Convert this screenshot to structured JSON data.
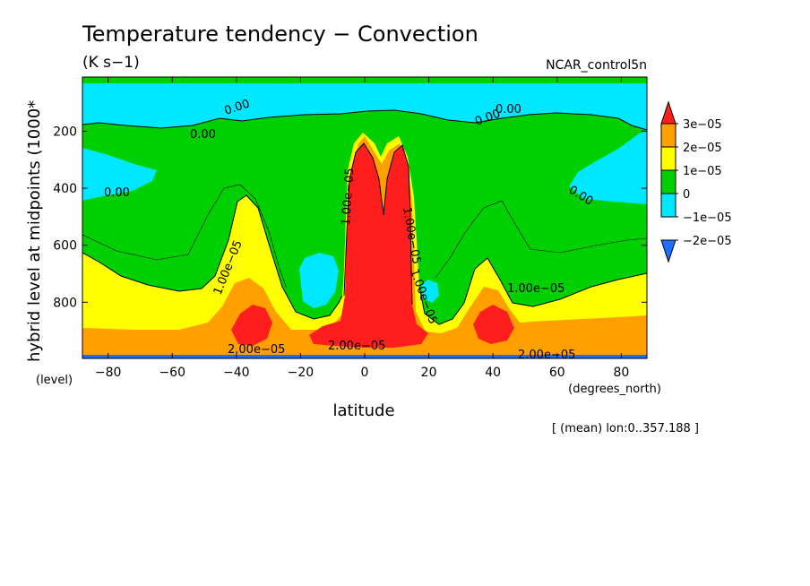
{
  "chart_data": {
    "type": "heatmap",
    "title": "Temperature tendency − Convection",
    "units": "(K s−1)",
    "run_label": "NCAR_control5n",
    "xlabel": "latitude",
    "x_unit_label": "(degrees_north)",
    "ylabel": "hybrid level at midpoints (1000*",
    "y_unit_label": "(level)",
    "footnote": "[ (mean) lon:0..357.188 ]",
    "xlim": [
      -88,
      88
    ],
    "ylim": [
      997,
      10
    ],
    "x_ticks": [
      -80,
      -60,
      -40,
      -20,
      0,
      20,
      40,
      60,
      80
    ],
    "x_tick_labels": [
      "−80",
      "−60",
      "−40",
      "−20",
      "0",
      "20",
      "40",
      "60",
      "80"
    ],
    "y_ticks": [
      200,
      400,
      600,
      800
    ],
    "y_tick_labels": [
      "200",
      "400",
      "600",
      "800"
    ],
    "legend": {
      "placement": "right",
      "colors": [
        "#1e6eff",
        "#00e8ff",
        "#00d000",
        "#ffff00",
        "#ffa000",
        "#ff1e1e"
      ],
      "labels": [
        "3e−05",
        "2e−05",
        "1e−05",
        "0",
        "−1e−05",
        "−2e−05"
      ]
    },
    "contour_labels": [
      "0.00",
      "0.00",
      "0.00",
      "0.00",
      "0.00",
      "0.00",
      "1.00e−05",
      "1.00e−05",
      "1.00e−05",
      "1.00e−05",
      "1.00e−05",
      "2.00e−05",
      "2.00e−05",
      "2.00e−05"
    ],
    "levels": [
      {
        "level": "-2e-05",
        "color": "#1e6eff"
      },
      {
        "level": "-1e-05",
        "color": "#00e8ff"
      },
      {
        "level": "0",
        "color": "#00d000"
      },
      {
        "level": "1e-05",
        "color": "#ffff00"
      },
      {
        "level": "2e-05",
        "color": "#ffa000"
      },
      {
        "level": "3e-05",
        "color": "#ff1e1e"
      }
    ]
  }
}
